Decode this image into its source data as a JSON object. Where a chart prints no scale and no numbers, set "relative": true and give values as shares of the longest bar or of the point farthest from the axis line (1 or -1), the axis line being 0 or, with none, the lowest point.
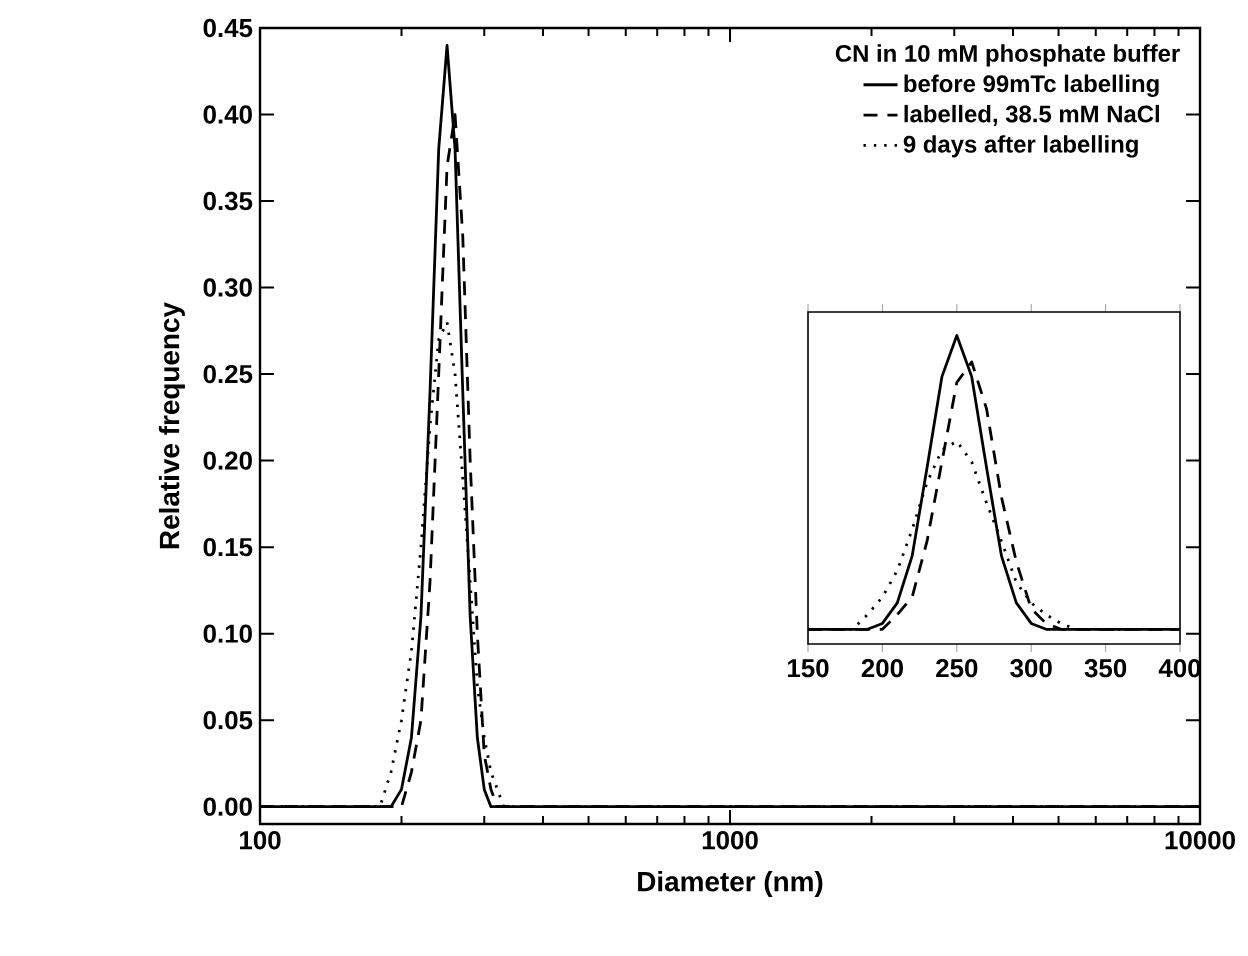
{
  "chart_data": [
    {
      "type": "line",
      "xlabel": "Diameter (nm)",
      "ylabel": "Relative frequency",
      "legend_title": "CN in 10 mM phosphate buffer",
      "legend": "top right",
      "log": "x",
      "xlim": [
        100,
        10000
      ],
      "xticks": [
        100,
        1000,
        10000
      ],
      "ylim": [
        -0.01,
        0.45
      ],
      "yticks": [
        {
          "value": 0,
          "label": "0.00"
        },
        0.05,
        {
          "value": 0.1,
          "label": "0.10"
        },
        0.15,
        {
          "value": 0.2,
          "label": "0.20"
        },
        0.25,
        {
          "value": 0.3,
          "label": "0.30"
        },
        0.35,
        {
          "value": 0.4,
          "label": "0.40"
        },
        0.45
      ],
      "series": [
        {
          "name": "before 99mTc labelling",
          "color": "#000000",
          "line_style": "solid",
          "x": [
            100,
            190,
            200,
            210,
            220,
            230,
            240,
            250,
            260,
            270,
            280,
            290,
            300,
            310,
            10000
          ],
          "values": [
            0,
            0,
            0.01,
            0.04,
            0.11,
            0.24,
            0.38,
            0.44,
            0.38,
            0.24,
            0.11,
            0.04,
            0.01,
            0,
            0
          ]
        },
        {
          "name": "labelled, 38.5 mM NaCl",
          "color": "#000000",
          "line_style": "dashed",
          "x": [
            100,
            200,
            210,
            220,
            230,
            240,
            250,
            260,
            270,
            280,
            290,
            300,
            310,
            320,
            10000
          ],
          "values": [
            0,
            0,
            0.02,
            0.05,
            0.13,
            0.25,
            0.37,
            0.4,
            0.33,
            0.2,
            0.1,
            0.03,
            0.01,
            0,
            0
          ]
        },
        {
          "name": "9 days after labelling",
          "color": "#000000",
          "line_style": "dotted",
          "x": [
            100,
            180,
            190,
            200,
            210,
            220,
            230,
            240,
            250,
            260,
            270,
            280,
            290,
            300,
            310,
            320,
            330,
            10000
          ],
          "values": [
            0,
            0,
            0.02,
            0.05,
            0.09,
            0.15,
            0.22,
            0.27,
            0.28,
            0.25,
            0.19,
            0.13,
            0.07,
            0.04,
            0.02,
            0.01,
            0,
            0
          ]
        }
      ]
    },
    {
      "type": "line",
      "relative": true,
      "tick_labels": "x",
      "xlim": [
        150,
        400
      ],
      "xticks": [
        150,
        200,
        250,
        300,
        350,
        400
      ],
      "series": [
        {
          "color": "#000000",
          "line_style": "solid",
          "x": [
            150,
            190,
            200,
            210,
            220,
            230,
            240,
            250,
            260,
            270,
            280,
            290,
            300,
            310,
            400
          ],
          "values": [
            0,
            0,
            0.02,
            0.09,
            0.25,
            0.55,
            0.86,
            1,
            0.86,
            0.55,
            0.25,
            0.09,
            0.02,
            0,
            0
          ]
        },
        {
          "color": "#000000",
          "line_style": "dashed",
          "x": [
            150,
            200,
            210,
            220,
            230,
            240,
            250,
            260,
            270,
            280,
            290,
            300,
            310,
            320,
            400
          ],
          "values": [
            0,
            0,
            0.05,
            0.11,
            0.3,
            0.57,
            0.84,
            0.91,
            0.75,
            0.45,
            0.23,
            0.07,
            0.02,
            0,
            0
          ]
        },
        {
          "color": "#000000",
          "line_style": "dotted",
          "x": [
            150,
            180,
            190,
            200,
            210,
            220,
            230,
            240,
            250,
            260,
            270,
            280,
            290,
            300,
            310,
            320,
            330,
            400
          ],
          "values": [
            0,
            0,
            0.05,
            0.11,
            0.2,
            0.34,
            0.5,
            0.61,
            0.64,
            0.57,
            0.43,
            0.3,
            0.16,
            0.09,
            0.05,
            0.02,
            0,
            0
          ]
        }
      ]
    }
  ]
}
